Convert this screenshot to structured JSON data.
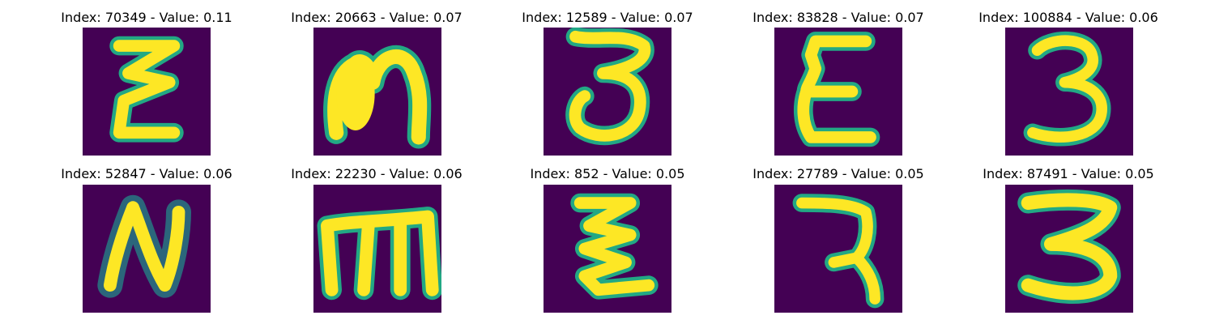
{
  "figure": {
    "background_color": "#440154",
    "stroke_color": "#fde725",
    "halo_color": "#22a884",
    "panels": [
      {
        "title": "Index: 70349 - Value: 0.11",
        "glyph": "epsilon-zigzag-icon"
      },
      {
        "title": "Index: 20663 - Value: 0.07",
        "glyph": "n-shape-icon"
      },
      {
        "title": "Index: 12589 - Value: 0.07",
        "glyph": "three-icon"
      },
      {
        "title": "Index: 83828 - Value: 0.07",
        "glyph": "epsilon-icon"
      },
      {
        "title": "Index: 100884 - Value: 0.06",
        "glyph": "three-icon"
      },
      {
        "title": "Index: 52847 - Value: 0.06",
        "glyph": "n-letter-icon"
      },
      {
        "title": "Index: 22230 - Value: 0.06",
        "glyph": "m-shape-icon"
      },
      {
        "title": "Index: 852 - Value: 0.05",
        "glyph": "zigzag-icon"
      },
      {
        "title": "Index: 27789 - Value: 0.05",
        "glyph": "seven-icon"
      },
      {
        "title": "Index: 87491 - Value: 0.05",
        "glyph": "three-icon"
      }
    ]
  }
}
